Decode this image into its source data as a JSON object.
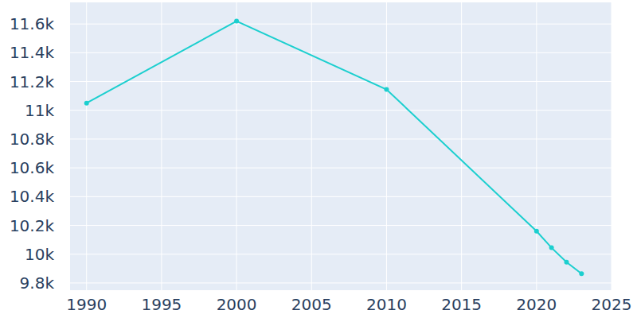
{
  "chart_data": {
    "type": "line",
    "x": [
      1990,
      2000,
      2010,
      2020,
      2021,
      2022,
      2023
    ],
    "values": [
      11050,
      11620,
      11145,
      10160,
      10045,
      9945,
      9865
    ],
    "color": "#1ccfcf",
    "marker": "circle",
    "grid": true,
    "xlim": [
      1988.9,
      2025
    ],
    "xticks": [
      1990,
      1995,
      2000,
      2005,
      2010,
      2015,
      2020,
      2025
    ],
    "ylim": [
      9750,
      11750
    ],
    "yticks": [
      {
        "value": 9800,
        "label": "9.8k"
      },
      {
        "value": 10000,
        "label": "10k"
      },
      {
        "value": 10200,
        "label": "10.2k"
      },
      {
        "value": 10400,
        "label": "10.4k"
      },
      {
        "value": 10600,
        "label": "10.6k"
      },
      {
        "value": 10800,
        "label": "10.8k"
      },
      {
        "value": 11000,
        "label": "11k"
      },
      {
        "value": 11200,
        "label": "11.2k"
      },
      {
        "value": 11400,
        "label": "11.4k"
      },
      {
        "value": 11600,
        "label": "11.6k"
      }
    ]
  }
}
